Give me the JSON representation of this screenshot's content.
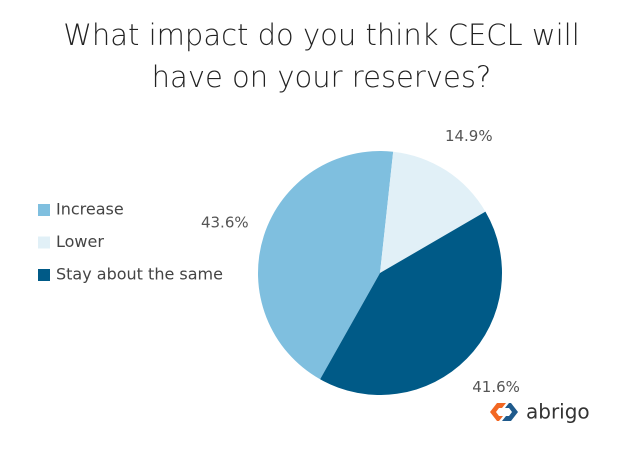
{
  "chart_data": {
    "type": "pie",
    "title": "What impact do you think CECL will have on your reserves?",
    "categories": [
      "Increase",
      "Lower",
      "Stay about the same"
    ],
    "values": [
      43.6,
      14.9,
      41.6
    ],
    "value_labels": [
      "43.6%",
      "14.9%",
      "41.6%"
    ],
    "colors": [
      "#7fbfdf",
      "#e1f0f7",
      "#005a87"
    ],
    "legend": "left"
  },
  "logo_text": "abrigo"
}
